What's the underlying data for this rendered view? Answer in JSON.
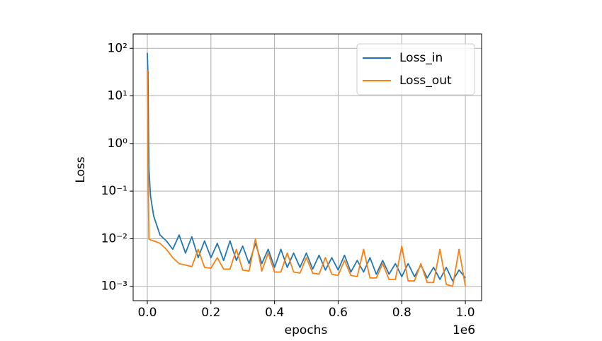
{
  "chart_data": {
    "type": "line",
    "x_label": "epochs",
    "y_label": "Loss",
    "x_offset_label": "1e6",
    "x": [
      0,
      0.002,
      0.005,
      0.01,
      0.02,
      0.04,
      0.06,
      0.08,
      0.1,
      0.12,
      0.14,
      0.16,
      0.18,
      0.2,
      0.22,
      0.24,
      0.26,
      0.28,
      0.3,
      0.32,
      0.34,
      0.36,
      0.38,
      0.4,
      0.42,
      0.44,
      0.46,
      0.48,
      0.5,
      0.52,
      0.54,
      0.56,
      0.58,
      0.6,
      0.62,
      0.64,
      0.66,
      0.68,
      0.7,
      0.72,
      0.74,
      0.76,
      0.78,
      0.8,
      0.82,
      0.84,
      0.86,
      0.88,
      0.9,
      0.92,
      0.94,
      0.96,
      0.98,
      1.0
    ],
    "series": [
      {
        "name": "Loss_in",
        "color": "#1f77b4",
        "values": [
          80,
          30,
          0.3,
          0.08,
          0.03,
          0.012,
          0.009,
          0.006,
          0.012,
          0.005,
          0.011,
          0.004,
          0.009,
          0.004,
          0.008,
          0.0035,
          0.009,
          0.0035,
          0.007,
          0.003,
          0.008,
          0.003,
          0.006,
          0.0025,
          0.006,
          0.0025,
          0.005,
          0.0025,
          0.005,
          0.0023,
          0.0045,
          0.0022,
          0.004,
          0.0022,
          0.0045,
          0.002,
          0.0035,
          0.002,
          0.004,
          0.0018,
          0.0035,
          0.0018,
          0.003,
          0.0016,
          0.003,
          0.0016,
          0.0028,
          0.0015,
          0.0025,
          0.0014,
          0.0025,
          0.0013,
          0.0022,
          0.0015
        ]
      },
      {
        "name": "Loss_out",
        "color": "#ff7f0e",
        "values": [
          35,
          0.5,
          0.01,
          0.0095,
          0.009,
          0.008,
          0.006,
          0.004,
          0.003,
          0.0028,
          0.0026,
          0.006,
          0.0025,
          0.0024,
          0.004,
          0.0023,
          0.0023,
          0.006,
          0.0022,
          0.0021,
          0.01,
          0.0021,
          0.005,
          0.002,
          0.002,
          0.005,
          0.002,
          0.0019,
          0.004,
          0.0019,
          0.0018,
          0.004,
          0.0018,
          0.0017,
          0.0035,
          0.0017,
          0.0016,
          0.006,
          0.0015,
          0.0015,
          0.003,
          0.0014,
          0.0014,
          0.007,
          0.0013,
          0.0013,
          0.003,
          0.0012,
          0.0012,
          0.006,
          0.0011,
          0.001,
          0.006,
          0.001
        ]
      }
    ],
    "xlim": [
      -0.0445,
      1.051
    ],
    "xticks": [
      {
        "value": 0,
        "label": "0.0"
      },
      0.2,
      0.4,
      0.6,
      0.8,
      {
        "value": 1,
        "label": "1.0"
      }
    ],
    "ylim": [
      0.0005,
      200
    ],
    "y_scale": "log",
    "yticks": [
      {
        "value": 0.001,
        "label": "10⁻³"
      },
      {
        "value": 0.01,
        "label": "10⁻²"
      },
      {
        "value": 0.1,
        "label": "10⁻¹"
      },
      {
        "value": 1,
        "label": "10⁰"
      },
      {
        "value": 10,
        "label": "10¹"
      },
      {
        "value": 100,
        "label": "10²"
      }
    ],
    "grid": true,
    "legend": "upper right"
  }
}
